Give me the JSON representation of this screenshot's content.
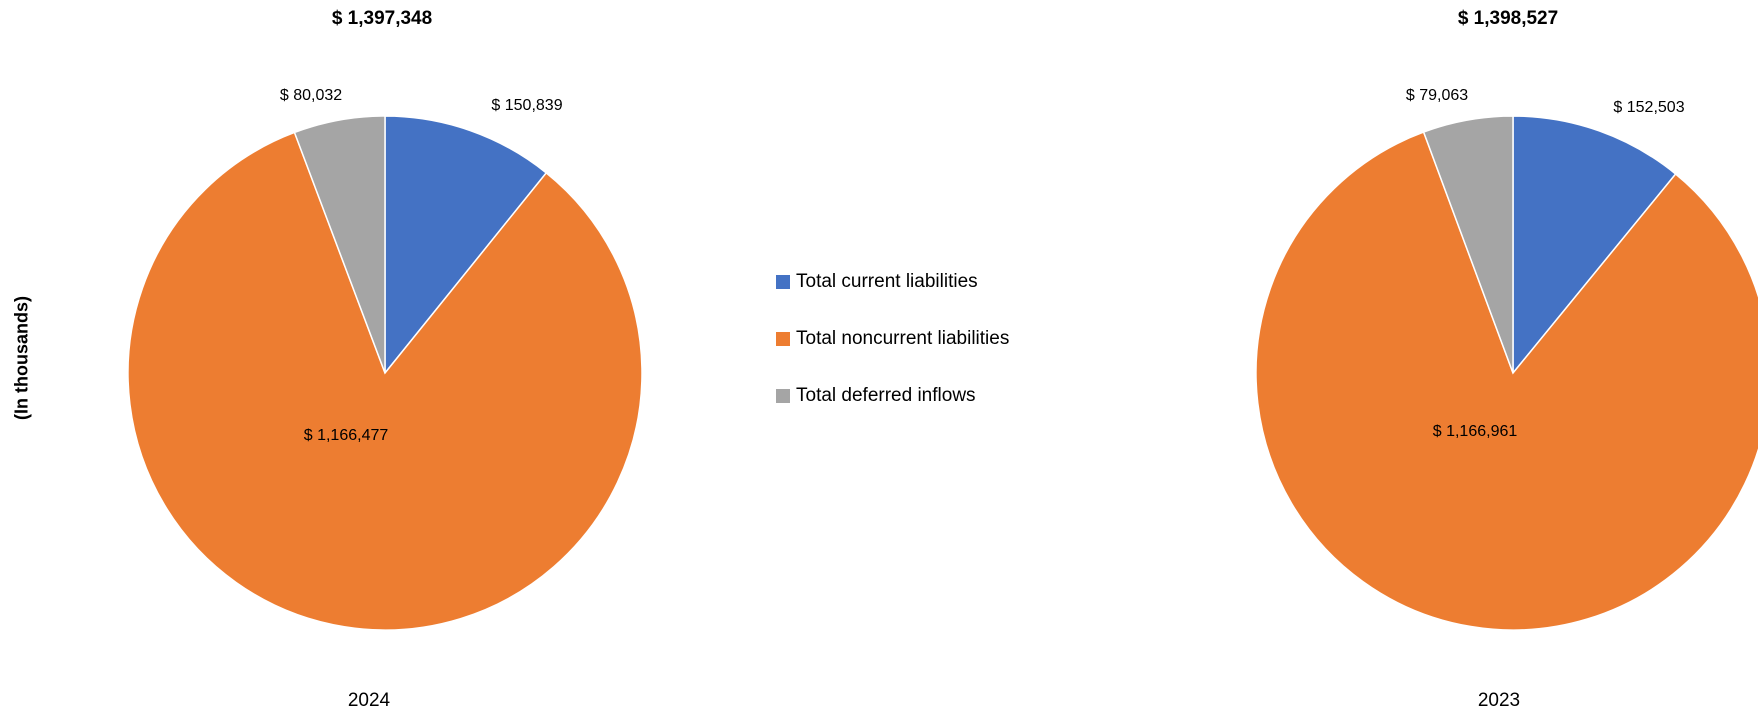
{
  "chart_data": {
    "type": "pie",
    "ylabel": "(In thousands)",
    "legend_position": "center",
    "series_names": [
      "Total current liabilities",
      "Total noncurrent liabilities",
      "Total deferred inflows"
    ],
    "colors": [
      "#4472C4",
      "#ED7D31",
      "#A5A5A5"
    ],
    "pies": [
      {
        "category": "2024",
        "title": "$ 1,397,348",
        "values": [
          150839,
          1166477,
          80032
        ],
        "labels": [
          "$ 150,839",
          "$ 1,166,477",
          "$ 80,032"
        ]
      },
      {
        "category": "2023",
        "title": "$ 1,398,527",
        "values": [
          152503,
          1166961,
          79063
        ],
        "labels": [
          "$ 152,503",
          "$ 1,166,961",
          "$ 79,063"
        ]
      }
    ]
  }
}
